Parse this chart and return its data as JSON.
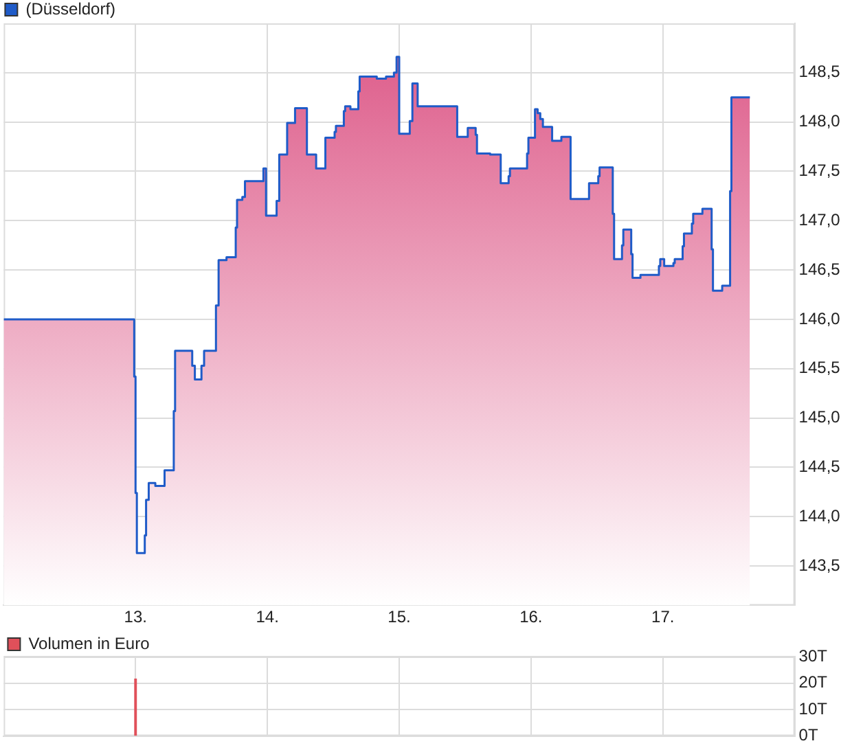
{
  "chart_data": [
    {
      "type": "area",
      "legend": "top left",
      "grid": true,
      "x": [
        12.0,
        12.99,
        12.99,
        13.0,
        13.0,
        13.01,
        13.01,
        13.07,
        13.07,
        13.08,
        13.08,
        13.1,
        13.1,
        13.15,
        13.15,
        13.22,
        13.22,
        13.29,
        13.29,
        13.3,
        13.3,
        13.43,
        13.43,
        13.45,
        13.45,
        13.5,
        13.5,
        13.52,
        13.52,
        13.61,
        13.61,
        13.63,
        13.63,
        13.69,
        13.69,
        13.76,
        13.76,
        13.77,
        13.77,
        13.81,
        13.81,
        13.83,
        13.83,
        13.97,
        13.97,
        13.99,
        13.99,
        14.07,
        14.07,
        14.09,
        14.09,
        14.15,
        14.15,
        14.21,
        14.21,
        14.3,
        14.3,
        14.37,
        14.37,
        14.44,
        14.44,
        14.51,
        14.51,
        14.52,
        14.52,
        14.58,
        14.58,
        14.59,
        14.59,
        14.63,
        14.63,
        14.69,
        14.69,
        14.7,
        14.7,
        14.83,
        14.83,
        14.9,
        14.9,
        14.96,
        14.96,
        14.98,
        14.98,
        15.0,
        15.0,
        15.08,
        15.08,
        15.1,
        15.1,
        15.14,
        15.14,
        15.44,
        15.44,
        15.52,
        15.52,
        15.58,
        15.58,
        15.59,
        15.59,
        15.69,
        15.69,
        15.77,
        15.77,
        15.83,
        15.83,
        15.84,
        15.84,
        15.97,
        15.97,
        15.98,
        15.98,
        16.03,
        16.03,
        16.05,
        16.05,
        16.07,
        16.07,
        16.09,
        16.09,
        16.16,
        16.16,
        16.23,
        16.23,
        16.3,
        16.3,
        16.44,
        16.44,
        16.51,
        16.51,
        16.52,
        16.52,
        16.62,
        16.62,
        16.63,
        16.63,
        16.69,
        16.69,
        16.7,
        16.7,
        16.76,
        16.76,
        16.77,
        16.77,
        16.83,
        16.83,
        16.97,
        16.97,
        16.98,
        16.98,
        17.01,
        17.01,
        17.08,
        17.08,
        17.09,
        17.09,
        17.15,
        17.15,
        17.16,
        17.16,
        17.22,
        17.22,
        17.23,
        17.23,
        17.3,
        17.3,
        17.37,
        17.37,
        17.38,
        17.38,
        17.45,
        17.45,
        17.51,
        17.51,
        17.52,
        17.52,
        17.66
      ],
      "series": [
        {
          "name": "(Düsseldorf)",
          "color": "#1f5bc8",
          "values": [
            146.0,
            146.0,
            145.42,
            145.42,
            144.24,
            144.24,
            143.63,
            143.63,
            143.81,
            143.81,
            144.17,
            144.17,
            144.34,
            144.34,
            144.31,
            144.31,
            144.47,
            144.47,
            145.07,
            145.07,
            145.68,
            145.68,
            145.53,
            145.53,
            145.39,
            145.39,
            145.53,
            145.53,
            145.68,
            145.68,
            146.14,
            146.14,
            146.6,
            146.6,
            146.63,
            146.63,
            146.93,
            146.93,
            147.21,
            147.21,
            147.24,
            147.24,
            147.4,
            147.4,
            147.53,
            147.53,
            147.05,
            147.05,
            147.2,
            147.2,
            147.67,
            147.67,
            147.99,
            147.99,
            148.14,
            148.14,
            147.67,
            147.67,
            147.53,
            147.53,
            147.84,
            147.84,
            147.9,
            147.9,
            147.96,
            147.96,
            148.11,
            148.11,
            148.16,
            148.16,
            148.13,
            148.13,
            148.31,
            148.31,
            148.46,
            148.46,
            148.44,
            148.44,
            148.46,
            148.46,
            148.5,
            148.5,
            148.66,
            148.66,
            147.88,
            147.88,
            148.01,
            148.01,
            148.39,
            148.39,
            148.16,
            148.16,
            147.85,
            147.85,
            147.94,
            147.94,
            147.87,
            147.87,
            147.68,
            147.68,
            147.67,
            147.67,
            147.38,
            147.38,
            147.45,
            147.45,
            147.53,
            147.53,
            147.68,
            147.68,
            147.84,
            147.84,
            148.13,
            148.13,
            148.09,
            148.09,
            148.03,
            148.03,
            147.95,
            147.95,
            147.81,
            147.81,
            147.85,
            147.85,
            147.22,
            147.22,
            147.38,
            147.38,
            147.45,
            147.45,
            147.54,
            147.54,
            147.07,
            147.07,
            146.61,
            146.61,
            146.75,
            146.75,
            146.91,
            146.91,
            146.66,
            146.66,
            146.42,
            146.42,
            146.45,
            146.45,
            146.54,
            146.54,
            146.61,
            146.61,
            146.54,
            146.54,
            146.57,
            146.57,
            146.61,
            146.61,
            146.74,
            146.74,
            146.87,
            146.87,
            146.97,
            146.97,
            147.07,
            147.07,
            147.12,
            147.12,
            146.71,
            146.71,
            146.29,
            146.29,
            146.34,
            146.34,
            147.3,
            147.3,
            148.25,
            148.25
          ]
        }
      ],
      "xlim": [
        12,
        18
      ],
      "xticks": [
        {
          "value": 13,
          "label": "13."
        },
        {
          "value": 14,
          "label": "14."
        },
        {
          "value": 15,
          "label": "15."
        },
        {
          "value": 16,
          "label": "16."
        },
        {
          "value": 17,
          "label": "17."
        }
      ],
      "ylim": [
        143.1,
        149.0
      ],
      "yticks": [
        {
          "value": 143.5,
          "label": "143,5"
        },
        {
          "value": 144,
          "label": "144,0"
        },
        {
          "value": 144.5,
          "label": "144,5"
        },
        {
          "value": 145,
          "label": "145,0"
        },
        {
          "value": 145.5,
          "label": "145,5"
        },
        {
          "value": 146,
          "label": "146,0"
        },
        {
          "value": 146.5,
          "label": "146,5"
        },
        {
          "value": 147,
          "label": "147,0"
        },
        {
          "value": 147.5,
          "label": "147,5"
        },
        {
          "value": 148,
          "label": "148,0"
        },
        {
          "value": 148.5,
          "label": "148,5"
        }
      ]
    },
    {
      "type": "bar",
      "legend": "top left",
      "grid": true,
      "tick_labels": "y",
      "x": [
        13.0
      ],
      "series": [
        {
          "name": "Volumen in Euro",
          "color": "#e0505a",
          "values": [
            21.5
          ]
        }
      ],
      "xlim": [
        12,
        18
      ],
      "xticks": [
        {
          "value": 13,
          "label": null
        },
        {
          "value": 14,
          "label": null
        },
        {
          "value": 15,
          "label": null
        },
        {
          "value": 16,
          "label": null
        },
        {
          "value": 17,
          "label": null
        }
      ],
      "ylim": [
        0,
        30
      ],
      "yticks": [
        {
          "value": 0,
          "label": "0T"
        },
        {
          "value": 10,
          "label": "10T"
        },
        {
          "value": 20,
          "label": "20T"
        },
        {
          "value": 30,
          "label": "30T"
        }
      ]
    }
  ]
}
